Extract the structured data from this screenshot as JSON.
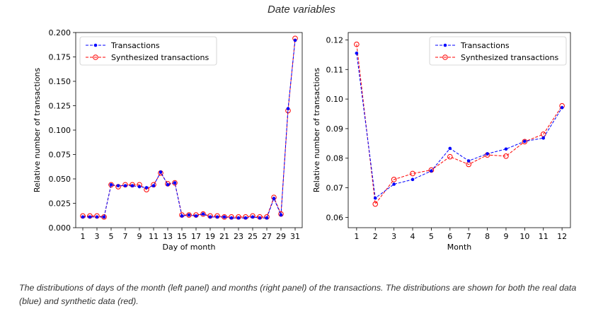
{
  "figure": {
    "title": "Date variables",
    "caption": "The distributions of days of the month (left panel) and months (right panel) of the transactions. The distributions are shown for both the real data (blue) and synthetic data (red)."
  },
  "colors": {
    "real": "#0000ff",
    "synthetic": "#ff0000"
  },
  "chart_data": [
    {
      "type": "line",
      "xlabel": "Day of month",
      "ylabel": "Relative number of transactions",
      "xlim": [
        0,
        32
      ],
      "ylim": [
        0,
        0.2
      ],
      "xticks": [
        1,
        3,
        5,
        7,
        9,
        11,
        13,
        15,
        17,
        19,
        21,
        23,
        25,
        27,
        29,
        31
      ],
      "yticks": [
        0.0,
        0.025,
        0.05,
        0.075,
        0.1,
        0.125,
        0.15,
        0.175,
        0.2
      ],
      "ytick_labels": [
        "0.000",
        "0.025",
        "0.050",
        "0.075",
        "0.100",
        "0.125",
        "0.150",
        "0.175",
        "0.200"
      ],
      "legend_position": "top-left",
      "x": [
        1,
        2,
        3,
        4,
        5,
        6,
        7,
        8,
        9,
        10,
        11,
        12,
        13,
        14,
        15,
        16,
        17,
        18,
        19,
        20,
        21,
        22,
        23,
        24,
        25,
        26,
        27,
        28,
        29,
        30,
        31
      ],
      "series": [
        {
          "name": "Transactions",
          "style": "real",
          "values": [
            0.011,
            0.011,
            0.011,
            0.011,
            0.044,
            0.043,
            0.043,
            0.043,
            0.042,
            0.041,
            0.043,
            0.057,
            0.044,
            0.046,
            0.012,
            0.013,
            0.012,
            0.014,
            0.011,
            0.011,
            0.011,
            0.01,
            0.01,
            0.01,
            0.011,
            0.01,
            0.01,
            0.03,
            0.013,
            0.122,
            0.192
          ]
        },
        {
          "name": "Synthesized transactions",
          "style": "synthetic",
          "values": [
            0.012,
            0.012,
            0.012,
            0.011,
            0.044,
            0.042,
            0.044,
            0.044,
            0.044,
            0.039,
            0.044,
            0.056,
            0.045,
            0.046,
            0.013,
            0.013,
            0.013,
            0.014,
            0.012,
            0.012,
            0.011,
            0.011,
            0.011,
            0.011,
            0.012,
            0.011,
            0.011,
            0.031,
            0.014,
            0.12,
            0.194
          ]
        }
      ]
    },
    {
      "type": "line",
      "xlabel": "Month",
      "ylabel": "Relative number of transactions",
      "xlim": [
        0.55,
        12.45
      ],
      "ylim": [
        0.0565,
        0.1225
      ],
      "xticks": [
        1,
        2,
        3,
        4,
        5,
        6,
        7,
        8,
        9,
        10,
        11,
        12
      ],
      "yticks": [
        0.06,
        0.07,
        0.08,
        0.09,
        0.1,
        0.11,
        0.12
      ],
      "ytick_labels": [
        "0.06",
        "0.07",
        "0.08",
        "0.09",
        "0.10",
        "0.11",
        "0.12"
      ],
      "legend_position": "top-right",
      "x": [
        1,
        2,
        3,
        4,
        5,
        6,
        7,
        8,
        9,
        10,
        11,
        12
      ],
      "series": [
        {
          "name": "Transactions",
          "style": "real",
          "values": [
            0.1155,
            0.0665,
            0.0712,
            0.0728,
            0.0757,
            0.0833,
            0.0791,
            0.0815,
            0.0831,
            0.0857,
            0.0868,
            0.0971
          ]
        },
        {
          "name": "Synthesized transactions",
          "style": "synthetic",
          "values": [
            0.1185,
            0.0645,
            0.0728,
            0.0748,
            0.076,
            0.0805,
            0.0779,
            0.0811,
            0.0807,
            0.0856,
            0.0881,
            0.0977
          ]
        }
      ]
    }
  ]
}
